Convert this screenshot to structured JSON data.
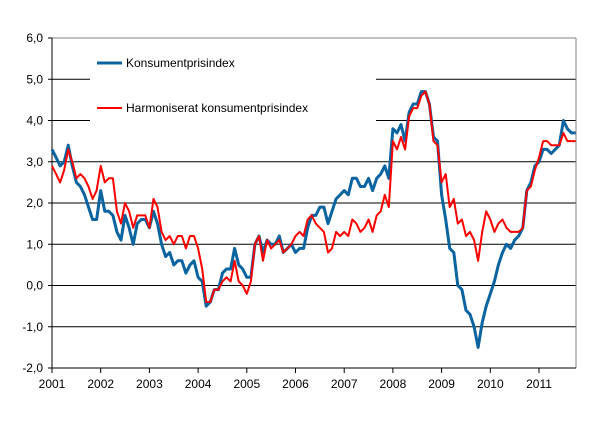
{
  "chart_data": {
    "type": "line",
    "title": "",
    "xlabel": "",
    "ylabel": "",
    "ylim": [
      -2,
      6
    ],
    "yticks": [
      "-2,0",
      "-1,0",
      "0,0",
      "1,0",
      "2,0",
      "3,0",
      "4,0",
      "5,0",
      "6,0"
    ],
    "xticks": [
      "2001",
      "2002",
      "2003",
      "2004",
      "2005",
      "2006",
      "2007",
      "2008",
      "2009",
      "2010",
      "2011"
    ],
    "x_start": "2001-01",
    "x_frequency": "monthly",
    "grid": true,
    "legend_placement": "top-left",
    "series": [
      {
        "name": "Konsumentprisindex",
        "color": "#0a64a0",
        "values": [
          3.3,
          3.1,
          2.9,
          3.0,
          3.4,
          2.9,
          2.5,
          2.4,
          2.2,
          1.9,
          1.6,
          1.6,
          2.3,
          1.8,
          1.8,
          1.7,
          1.3,
          1.1,
          1.7,
          1.4,
          1.0,
          1.5,
          1.6,
          1.6,
          1.4,
          1.8,
          1.5,
          1.0,
          0.7,
          0.8,
          0.5,
          0.6,
          0.6,
          0.3,
          0.5,
          0.6,
          0.2,
          0.1,
          -0.5,
          -0.4,
          -0.1,
          -0.1,
          0.3,
          0.4,
          0.4,
          0.9,
          0.5,
          0.4,
          0.2,
          0.2,
          1.0,
          1.2,
          0.8,
          1.1,
          1.0,
          1.0,
          1.2,
          0.8,
          0.9,
          1.0,
          0.8,
          0.9,
          0.9,
          1.4,
          1.7,
          1.7,
          1.9,
          1.9,
          1.5,
          1.8,
          2.1,
          2.2,
          2.3,
          2.2,
          2.6,
          2.6,
          2.4,
          2.4,
          2.6,
          2.3,
          2.6,
          2.7,
          2.9,
          2.6,
          3.8,
          3.7,
          3.9,
          3.5,
          4.2,
          4.4,
          4.4,
          4.7,
          4.7,
          4.4,
          3.6,
          3.5,
          2.2,
          1.6,
          0.9,
          0.8,
          0.0,
          -0.1,
          -0.6,
          -0.7,
          -1.0,
          -1.5,
          -0.9,
          -0.5,
          -0.2,
          0.1,
          0.5,
          0.8,
          1.0,
          0.9,
          1.1,
          1.2,
          1.4,
          2.3,
          2.5,
          2.9,
          3.0,
          3.3,
          3.3,
          3.2,
          3.3,
          3.4,
          4.0,
          3.8,
          3.7,
          3.7
        ]
      },
      {
        "name": "Harmoniserat konsumentprisindex",
        "color": "#ff0000",
        "values": [
          2.9,
          2.7,
          2.5,
          2.8,
          3.3,
          3.0,
          2.6,
          2.7,
          2.6,
          2.4,
          2.1,
          2.3,
          2.9,
          2.5,
          2.6,
          2.6,
          1.8,
          1.5,
          2.0,
          1.8,
          1.4,
          1.7,
          1.7,
          1.7,
          1.4,
          2.1,
          1.9,
          1.3,
          1.1,
          1.2,
          1.0,
          1.2,
          1.2,
          0.9,
          1.2,
          1.2,
          0.9,
          0.4,
          -0.4,
          -0.4,
          -0.1,
          -0.1,
          0.1,
          0.2,
          0.1,
          0.6,
          0.1,
          0.0,
          -0.2,
          0.1,
          1.0,
          1.2,
          0.6,
          1.1,
          0.9,
          1.0,
          1.1,
          0.8,
          0.9,
          1.0,
          1.2,
          1.3,
          1.2,
          1.6,
          1.7,
          1.5,
          1.4,
          1.3,
          0.8,
          0.9,
          1.3,
          1.2,
          1.3,
          1.2,
          1.6,
          1.5,
          1.3,
          1.4,
          1.6,
          1.3,
          1.7,
          1.8,
          2.2,
          1.9,
          3.5,
          3.3,
          3.6,
          3.3,
          4.1,
          4.3,
          4.3,
          4.6,
          4.7,
          4.4,
          3.5,
          3.4,
          2.5,
          2.7,
          1.9,
          2.1,
          1.5,
          1.6,
          1.2,
          1.3,
          1.1,
          0.6,
          1.3,
          1.8,
          1.6,
          1.3,
          1.5,
          1.6,
          1.4,
          1.3,
          1.3,
          1.3,
          1.4,
          2.3,
          2.4,
          2.8,
          3.1,
          3.5,
          3.5,
          3.4,
          3.4,
          3.4,
          3.7,
          3.5,
          3.5,
          3.5
        ]
      }
    ]
  }
}
